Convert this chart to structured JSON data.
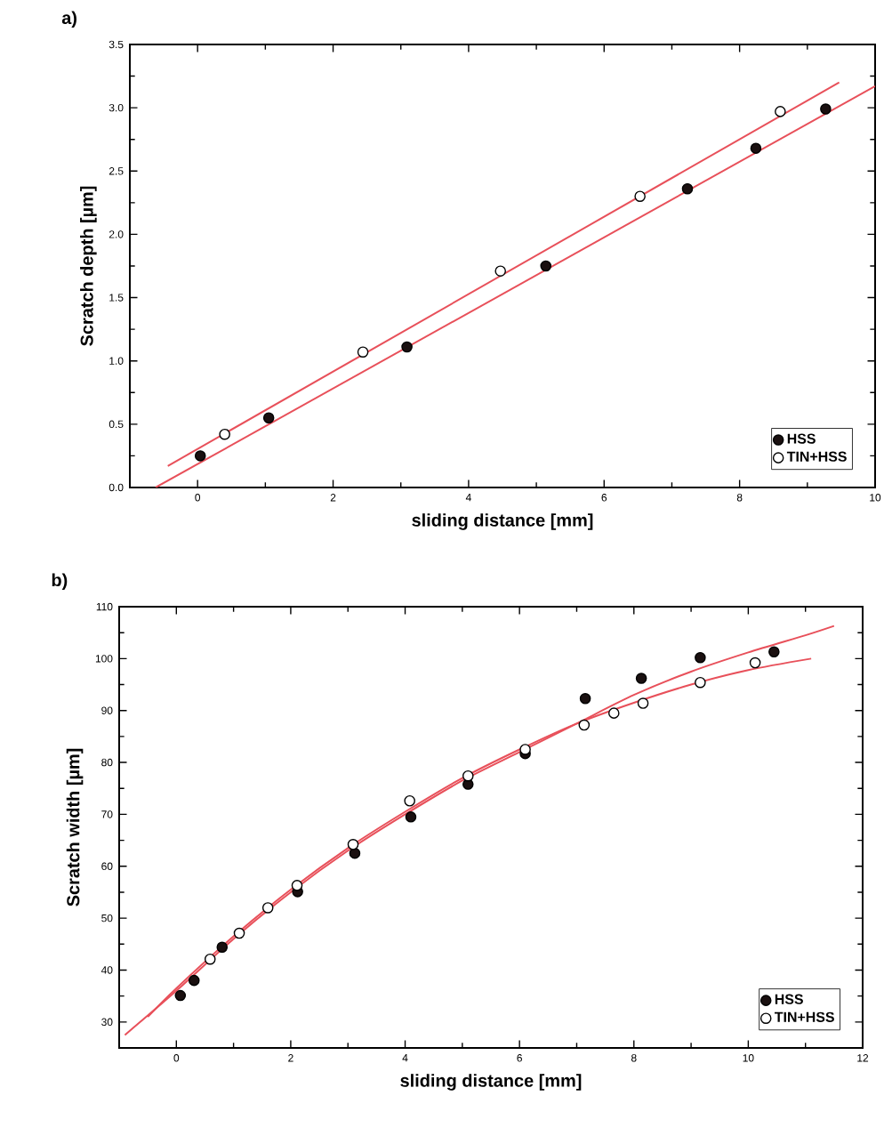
{
  "chart_data": [
    {
      "type": "scatter",
      "title": "a)",
      "xlabel": "sliding distance [mm]",
      "ylabel": "Scratch depth [µm]",
      "xlim": [
        -1,
        10
      ],
      "ylim": [
        0,
        3.5
      ],
      "xticks": [
        0,
        2,
        4,
        6,
        8,
        10
      ],
      "yticks": [
        {
          "value": 0,
          "label": "0.0"
        },
        {
          "value": 0.5,
          "label": "0.5"
        },
        {
          "value": 1,
          "label": "1.0"
        },
        {
          "value": 1.5,
          "label": "1.5"
        },
        {
          "value": 2,
          "label": "2.0"
        },
        {
          "value": 2.5,
          "label": "2.5"
        },
        {
          "value": 3,
          "label": "3.0"
        },
        {
          "value": 3.5,
          "label": "3.5"
        }
      ],
      "grid": false,
      "legend": "bottom right",
      "series": [
        {
          "name": "HSS",
          "marker": "circle",
          "color": "#1a1010",
          "x": [
            0.04,
            1.05,
            3.09,
            5.14,
            7.23,
            8.24,
            9.27
          ],
          "values": [
            0.25,
            0.55,
            1.11,
            1.75,
            2.36,
            2.68,
            2.99
          ]
        },
        {
          "name": "TIN+HSS",
          "marker": "circle",
          "color": "#ffffff",
          "x": [
            0.4,
            2.44,
            4.47,
            6.53,
            8.6
          ],
          "values": [
            0.42,
            1.07,
            1.71,
            2.3,
            2.97
          ]
        },
        {
          "type": "line",
          "marker": "none",
          "color": "#e8505a",
          "x": [
            -0.62,
            10
          ],
          "values": [
            0,
            3.17
          ]
        },
        {
          "type": "line",
          "marker": "none",
          "color": "#e8505a",
          "x": [
            -0.44,
            9.47
          ],
          "values": [
            0.17,
            3.2
          ]
        }
      ]
    },
    {
      "type": "scatter",
      "title": "b)",
      "xlabel": "sliding distance [mm]",
      "ylabel": "Scratch width [µm]",
      "xlim": [
        -1,
        12
      ],
      "ylim": [
        25,
        110
      ],
      "xticks": [
        0,
        2,
        4,
        6,
        8,
        10,
        12
      ],
      "yticks": [
        30,
        40,
        50,
        60,
        70,
        80,
        90,
        100,
        110
      ],
      "grid": false,
      "legend": "bottom right",
      "series": [
        {
          "name": "HSS",
          "marker": "circle",
          "color": "#1a1010",
          "x": [
            0.07,
            0.31,
            0.8,
            1.55,
            2.12,
            3.12,
            4.1,
            5.1,
            6.1,
            7.15,
            8.13,
            9.16,
            10.45
          ],
          "values": [
            35.1,
            38.0,
            44.4,
            null,
            55.1,
            62.5,
            69.5,
            75.8,
            81.7,
            92.3,
            96.2,
            100.2,
            101.3
          ]
        },
        {
          "name": "TIN+HSS",
          "marker": "circle",
          "color": "#ffffff",
          "x": [
            0.59,
            1.1,
            1.6,
            2.11,
            3.09,
            4.08,
            5.1,
            6.1,
            7.13,
            7.65,
            8.16,
            9.16,
            10.12
          ],
          "values": [
            42.1,
            47.1,
            52.0,
            56.3,
            64.2,
            72.6,
            77.4,
            82.5,
            87.2,
            89.5,
            91.4,
            95.4,
            99.2
          ]
        },
        {
          "type": "line",
          "marker": "none",
          "color": "#e8505a",
          "x": [
            -0.9,
            0,
            1,
            2,
            3,
            4,
            5,
            6,
            7,
            8,
            9,
            10,
            11,
            11.5
          ],
          "values": [
            27.5,
            36,
            46,
            55,
            63,
            70,
            76.5,
            82,
            87.5,
            93,
            97.5,
            101.2,
            104.5,
            106.3
          ]
        },
        {
          "type": "line",
          "marker": "none",
          "color": "#e8505a",
          "x": [
            -0.5,
            0,
            1,
            2,
            3,
            4,
            5,
            6,
            7,
            8,
            9,
            10,
            11.1
          ],
          "values": [
            31,
            36.5,
            46.5,
            55.5,
            63.5,
            70.5,
            77,
            82.5,
            87.5,
            91.5,
            95,
            97.8,
            100
          ]
        }
      ]
    }
  ]
}
